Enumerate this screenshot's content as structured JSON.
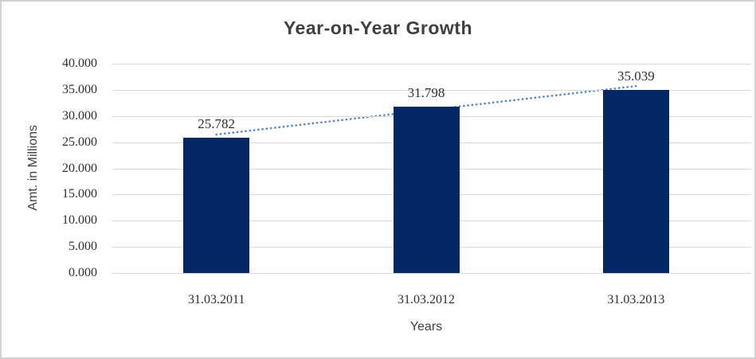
{
  "chart": {
    "colors": {
      "bar": "#042765",
      "trend": "#4e83c9",
      "gridline": "#d9d9d9",
      "frame_border": "#d2d2d2",
      "title_text": "#3f3f3f",
      "label_text": "#2e2e2e"
    }
  },
  "chart_data": {
    "type": "bar",
    "title": "Year-on-Year Growth",
    "xlabel": "Years",
    "ylabel": "Amt. in Millions",
    "categories": [
      "31.03.2011",
      "31.03.2012",
      "31.03.2013"
    ],
    "values": [
      25.782,
      31.798,
      35.039
    ],
    "value_labels": [
      "25.782",
      "31.798",
      "35.039"
    ],
    "ylim": [
      0,
      40
    ],
    "y_ticks": [
      {
        "value": 40,
        "label": "40.000"
      },
      {
        "value": 35,
        "label": "35.000"
      },
      {
        "value": 30,
        "label": "30.000"
      },
      {
        "value": 25,
        "label": "25.000"
      },
      {
        "value": 20,
        "label": "20.000"
      },
      {
        "value": 15,
        "label": "15.000"
      },
      {
        "value": 10,
        "label": "10.000"
      },
      {
        "value": 5,
        "label": "5.000"
      },
      {
        "value": 0,
        "label": "0.000"
      }
    ],
    "grid": "horizontal",
    "legend": "none",
    "trendline": {
      "style": "dotted-linear",
      "from_series_first_to_last": true
    }
  }
}
